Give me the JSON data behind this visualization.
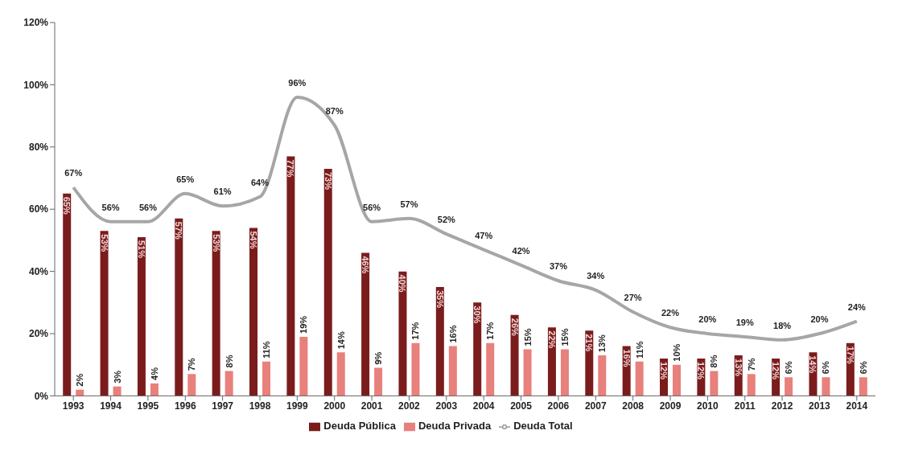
{
  "chart_data": {
    "type": "bar",
    "categories": [
      "1993",
      "1994",
      "1995",
      "1996",
      "1997",
      "1998",
      "1999",
      "2000",
      "2001",
      "2002",
      "2003",
      "2004",
      "2005",
      "2006",
      "2007",
      "2008",
      "2009",
      "2010",
      "2011",
      "2012",
      "2013",
      "2014"
    ],
    "series": [
      {
        "name": "Deuda Pública",
        "color": "#7b1c1c",
        "values": [
          65,
          53,
          51,
          57,
          53,
          54,
          77,
          73,
          46,
          40,
          35,
          30,
          26,
          22,
          21,
          16,
          12,
          12,
          13,
          12,
          14,
          17
        ],
        "value_labels": [
          "65%",
          "53%",
          "51%",
          "57%",
          "53%",
          "54%",
          "77%",
          "73%",
          "46%",
          "40%",
          "35%",
          "30%",
          "26%",
          "22%",
          "21%",
          "16%",
          "12%",
          "12%",
          "13%",
          "12%",
          "14%",
          "17%"
        ]
      },
      {
        "name": "Deuda Privada",
        "color": "#e8807c",
        "values": [
          2,
          3,
          4,
          7,
          8,
          11,
          19,
          14,
          9,
          17,
          16,
          17,
          15,
          15,
          13,
          11,
          10,
          8,
          7,
          6,
          6,
          6
        ],
        "value_labels": [
          "2%",
          "3%",
          "4%",
          "7%",
          "8%",
          "11%",
          "19%",
          "14%",
          "9%",
          "17%",
          "16%",
          "17%",
          "15%",
          "15%",
          "13%",
          "11%",
          "10%",
          "8%",
          "7%",
          "6%",
          "6%",
          "6%"
        ]
      },
      {
        "name": "Deuda Total",
        "type": "line",
        "color": "#a6a6a6",
        "values": [
          67,
          56,
          56,
          65,
          61,
          64,
          96,
          87,
          56,
          57,
          52,
          47,
          42,
          37,
          34,
          27,
          22,
          20,
          19,
          18,
          20,
          24
        ],
        "value_labels": [
          "67%",
          "56%",
          "56%",
          "65%",
          "61%",
          "64%",
          "96%",
          "87%",
          "56%",
          "57%",
          "52%",
          "47%",
          "42%",
          "37%",
          "34%",
          "27%",
          "22%",
          "20%",
          "19%",
          "18%",
          "20%",
          "24%"
        ]
      }
    ],
    "ylim": [
      0,
      120
    ],
    "yticks": [
      {
        "value": 0,
        "label": "0%"
      },
      {
        "value": 20,
        "label": "20%"
      },
      {
        "value": 40,
        "label": "40%"
      },
      {
        "value": 60,
        "label": "60%"
      },
      {
        "value": 80,
        "label": "80%"
      },
      {
        "value": 100,
        "label": "100%"
      },
      {
        "value": 120,
        "label": "120%"
      }
    ],
    "legend": "bottom",
    "grid": false
  }
}
